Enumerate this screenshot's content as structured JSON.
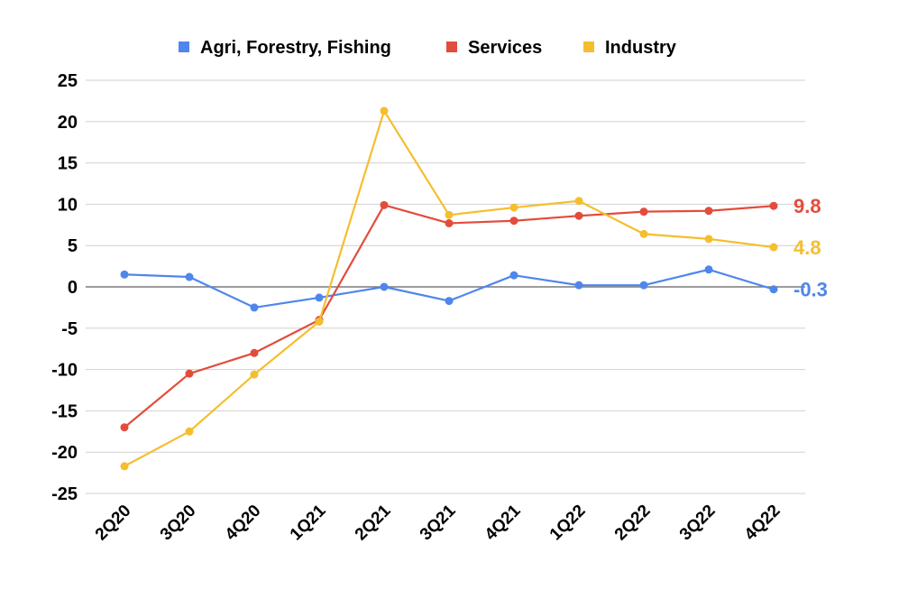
{
  "chart_data": {
    "type": "line",
    "title": "",
    "xlabel": "",
    "ylabel": "",
    "categories": [
      "2Q20",
      "3Q20",
      "4Q20",
      "1Q21",
      "2Q21",
      "3Q21",
      "4Q21",
      "1Q22",
      "2Q22",
      "3Q22",
      "4Q22"
    ],
    "ylim": [
      -25,
      25
    ],
    "yticks": [
      25,
      20,
      15,
      10,
      5,
      0,
      -5,
      -10,
      -15,
      -20,
      -25
    ],
    "grid": true,
    "legend_position": "top",
    "series": [
      {
        "name": "Agri, Forestry, Fishing",
        "color": "#4F86EC",
        "values": [
          1.5,
          1.2,
          -2.5,
          -1.3,
          0.0,
          -1.7,
          1.4,
          0.2,
          0.2,
          2.1,
          -0.3
        ],
        "end_label": "-0.3"
      },
      {
        "name": "Services",
        "color": "#E34C3C",
        "values": [
          -17.0,
          -10.5,
          -8.0,
          -4.0,
          9.9,
          7.7,
          8.0,
          8.6,
          9.1,
          9.2,
          9.8
        ],
        "end_label": "9.8"
      },
      {
        "name": "Industry",
        "color": "#F5BE2E",
        "values": [
          -21.7,
          -17.5,
          -10.6,
          -4.2,
          21.3,
          8.7,
          9.6,
          10.4,
          6.4,
          5.8,
          4.8
        ],
        "end_label": "4.8"
      }
    ]
  }
}
